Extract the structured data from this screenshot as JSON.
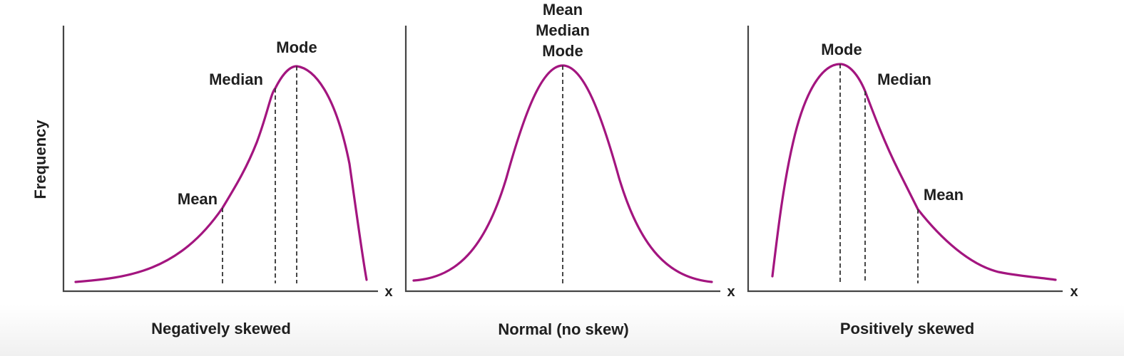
{
  "colors": {
    "curve": "#a3157f",
    "text": "#1f1f1f",
    "axis": "#444444"
  },
  "y_axis_label": "Frequency",
  "x_axis_symbol": "x",
  "panels": [
    {
      "caption": "Negatively skewed",
      "labels": {
        "mean": "Mean",
        "median": "Median",
        "mode": "Mode"
      }
    },
    {
      "caption": "Normal (no skew)",
      "labels": {
        "mean": "Mean",
        "median": "Median",
        "mode": "Mode"
      }
    },
    {
      "caption": "Positively skewed",
      "labels": {
        "mean": "Mean",
        "median": "Median",
        "mode": "Mode"
      }
    }
  ]
}
